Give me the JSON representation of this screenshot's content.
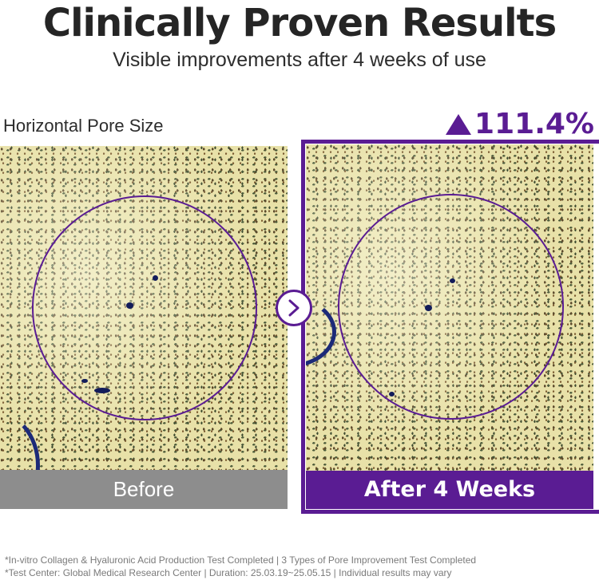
{
  "header": {
    "title": "Clinically Proven Results",
    "subtitle": "Visible improvements after 4 weeks of use"
  },
  "metric": {
    "label": "Horizontal Pore Size",
    "value": "111.4%",
    "direction_icon": "triangle-up-icon",
    "accent_color": "#5a1c93"
  },
  "comparison": {
    "before_caption": "Before",
    "after_caption": "After 4 Weeks",
    "before_caption_color": "#8d8d8d",
    "after_caption_color": "#5a1c93",
    "arrow_icon": "chevron-right-icon"
  },
  "footnotes": [
    "*In-vitro Collagen & Hyaluronic Acid Production Test Completed | 3 Types of Pore Improvement Test Completed",
    "*Test Center: Global Medical Research Center  |  Duration: 25.03.19~25.05.15 | Individual results may vary"
  ]
}
